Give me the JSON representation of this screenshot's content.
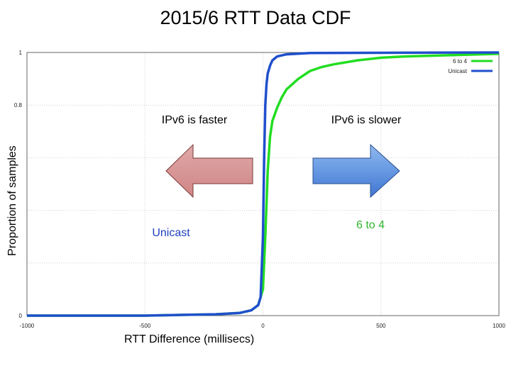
{
  "chart_data": {
    "type": "line",
    "title": "2015/6 RTT Data CDF",
    "xlabel": "RTT Difference (millisecs)",
    "ylabel": "Proportion of samples",
    "xlim": [
      -1000,
      1000
    ],
    "ylim": [
      0,
      1
    ],
    "x_ticks": [
      "-1000",
      "-500",
      "0",
      "500",
      "1000"
    ],
    "y_ticks": [
      "0",
      "",
      "",
      "",
      "0.8",
      "1"
    ],
    "grid": true,
    "legend_position": "top-right",
    "series": [
      {
        "name": "6 to 4",
        "color": "#22dd22",
        "x": [
          -1000,
          -500,
          -200,
          -100,
          -50,
          -20,
          0,
          10,
          20,
          30,
          40,
          60,
          80,
          100,
          150,
          200,
          250,
          300,
          400,
          500,
          600,
          800,
          1000
        ],
        "y": [
          0.0,
          0.0,
          0.005,
          0.01,
          0.02,
          0.04,
          0.1,
          0.3,
          0.55,
          0.68,
          0.74,
          0.79,
          0.83,
          0.86,
          0.9,
          0.93,
          0.945,
          0.955,
          0.97,
          0.98,
          0.985,
          0.99,
          0.995
        ]
      },
      {
        "name": "Unicast",
        "color": "#1f4fcc",
        "x": [
          -1000,
          -500,
          -200,
          -100,
          -50,
          -20,
          -10,
          0,
          5,
          10,
          15,
          20,
          30,
          40,
          60,
          100,
          200,
          1000
        ],
        "y": [
          0.0,
          0.0,
          0.005,
          0.01,
          0.02,
          0.04,
          0.07,
          0.3,
          0.6,
          0.8,
          0.88,
          0.92,
          0.95,
          0.97,
          0.985,
          0.993,
          0.998,
          1.0
        ]
      }
    ],
    "annotations": {
      "left_text": "IPv6 is faster",
      "right_text": "IPv6 is slower",
      "unicast_label": "Unicast",
      "sixto4_label": "6 to 4",
      "left_color": "#d49494",
      "right_color": "#5b8fd8",
      "unicast_label_color": "#1f3fbf",
      "sixto4_label_color": "#2db52d"
    }
  }
}
